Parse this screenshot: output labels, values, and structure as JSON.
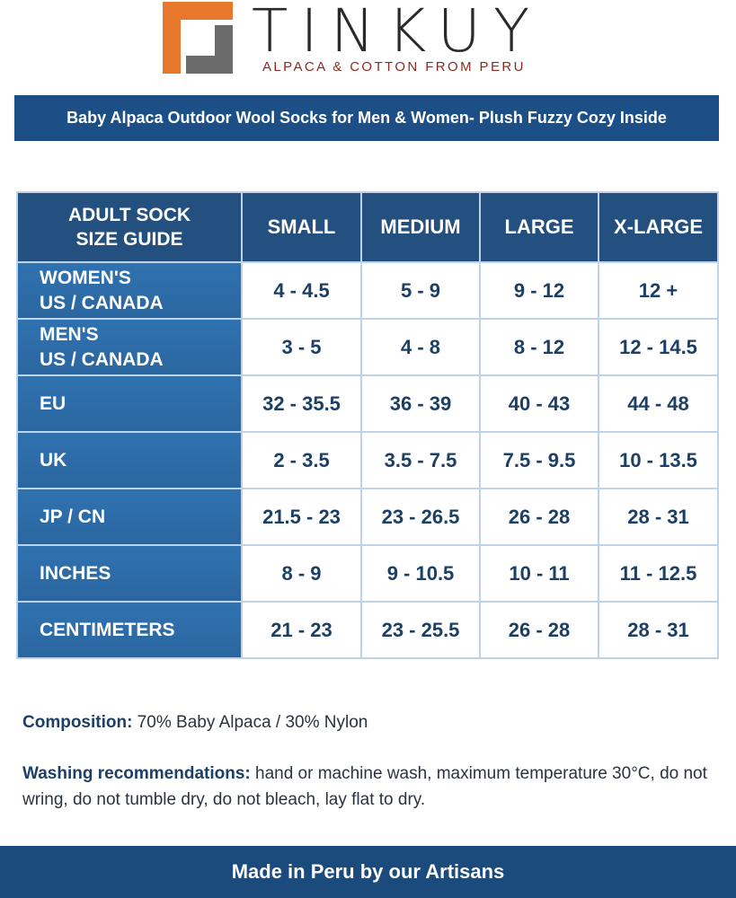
{
  "logo": {
    "name": "TINKUY",
    "tagline": "ALPACA & COTTON FROM PERU"
  },
  "banner": {
    "title": "Baby Alpaca Outdoor Wool Socks for Men & Women- Plush Fuzzy Cozy Inside"
  },
  "table": {
    "corner": [
      "ADULT SOCK",
      "SIZE GUIDE"
    ],
    "columns": [
      "SMALL",
      "MEDIUM",
      "LARGE",
      "X-LARGE"
    ],
    "rows": [
      {
        "label": [
          "WOMEN'S",
          "US / CANADA"
        ],
        "cells": [
          "4 - 4.5",
          "5 - 9",
          "9 - 12",
          "12 +"
        ]
      },
      {
        "label": [
          "MEN'S",
          "US / CANADA"
        ],
        "cells": [
          "3 - 5",
          "4 - 8",
          "8 - 12",
          "12 - 14.5"
        ]
      },
      {
        "label": [
          "EU"
        ],
        "cells": [
          "32 - 35.5",
          "36 - 39",
          "40 - 43",
          "44 - 48"
        ]
      },
      {
        "label": [
          "UK"
        ],
        "cells": [
          "2 - 3.5",
          "3.5 - 7.5",
          "7.5 - 9.5",
          "10 - 13.5"
        ]
      },
      {
        "label": [
          "JP / CN"
        ],
        "cells": [
          "21.5 - 23",
          "23 - 26.5",
          "26 - 28",
          "28 - 31"
        ]
      },
      {
        "label": [
          "INCHES"
        ],
        "cells": [
          "8 - 9",
          "9 - 10.5",
          "10 - 11",
          "11 - 12.5"
        ]
      },
      {
        "label": [
          "CENTIMETERS"
        ],
        "cells": [
          "21 - 23",
          "23 - 25.5",
          "26 - 28",
          "28 - 31"
        ]
      }
    ]
  },
  "composition": {
    "label": "Composition:",
    "text": "70% Baby Alpaca  / 30% Nylon"
  },
  "washing": {
    "label": "Washing recommendations:",
    "text": "hand or machine wash, maximum temperature 30°C, do not wring, do not tumble dry, do not bleach, lay flat to dry."
  },
  "footer": {
    "text": "Made in Peru by our Artisans"
  }
}
